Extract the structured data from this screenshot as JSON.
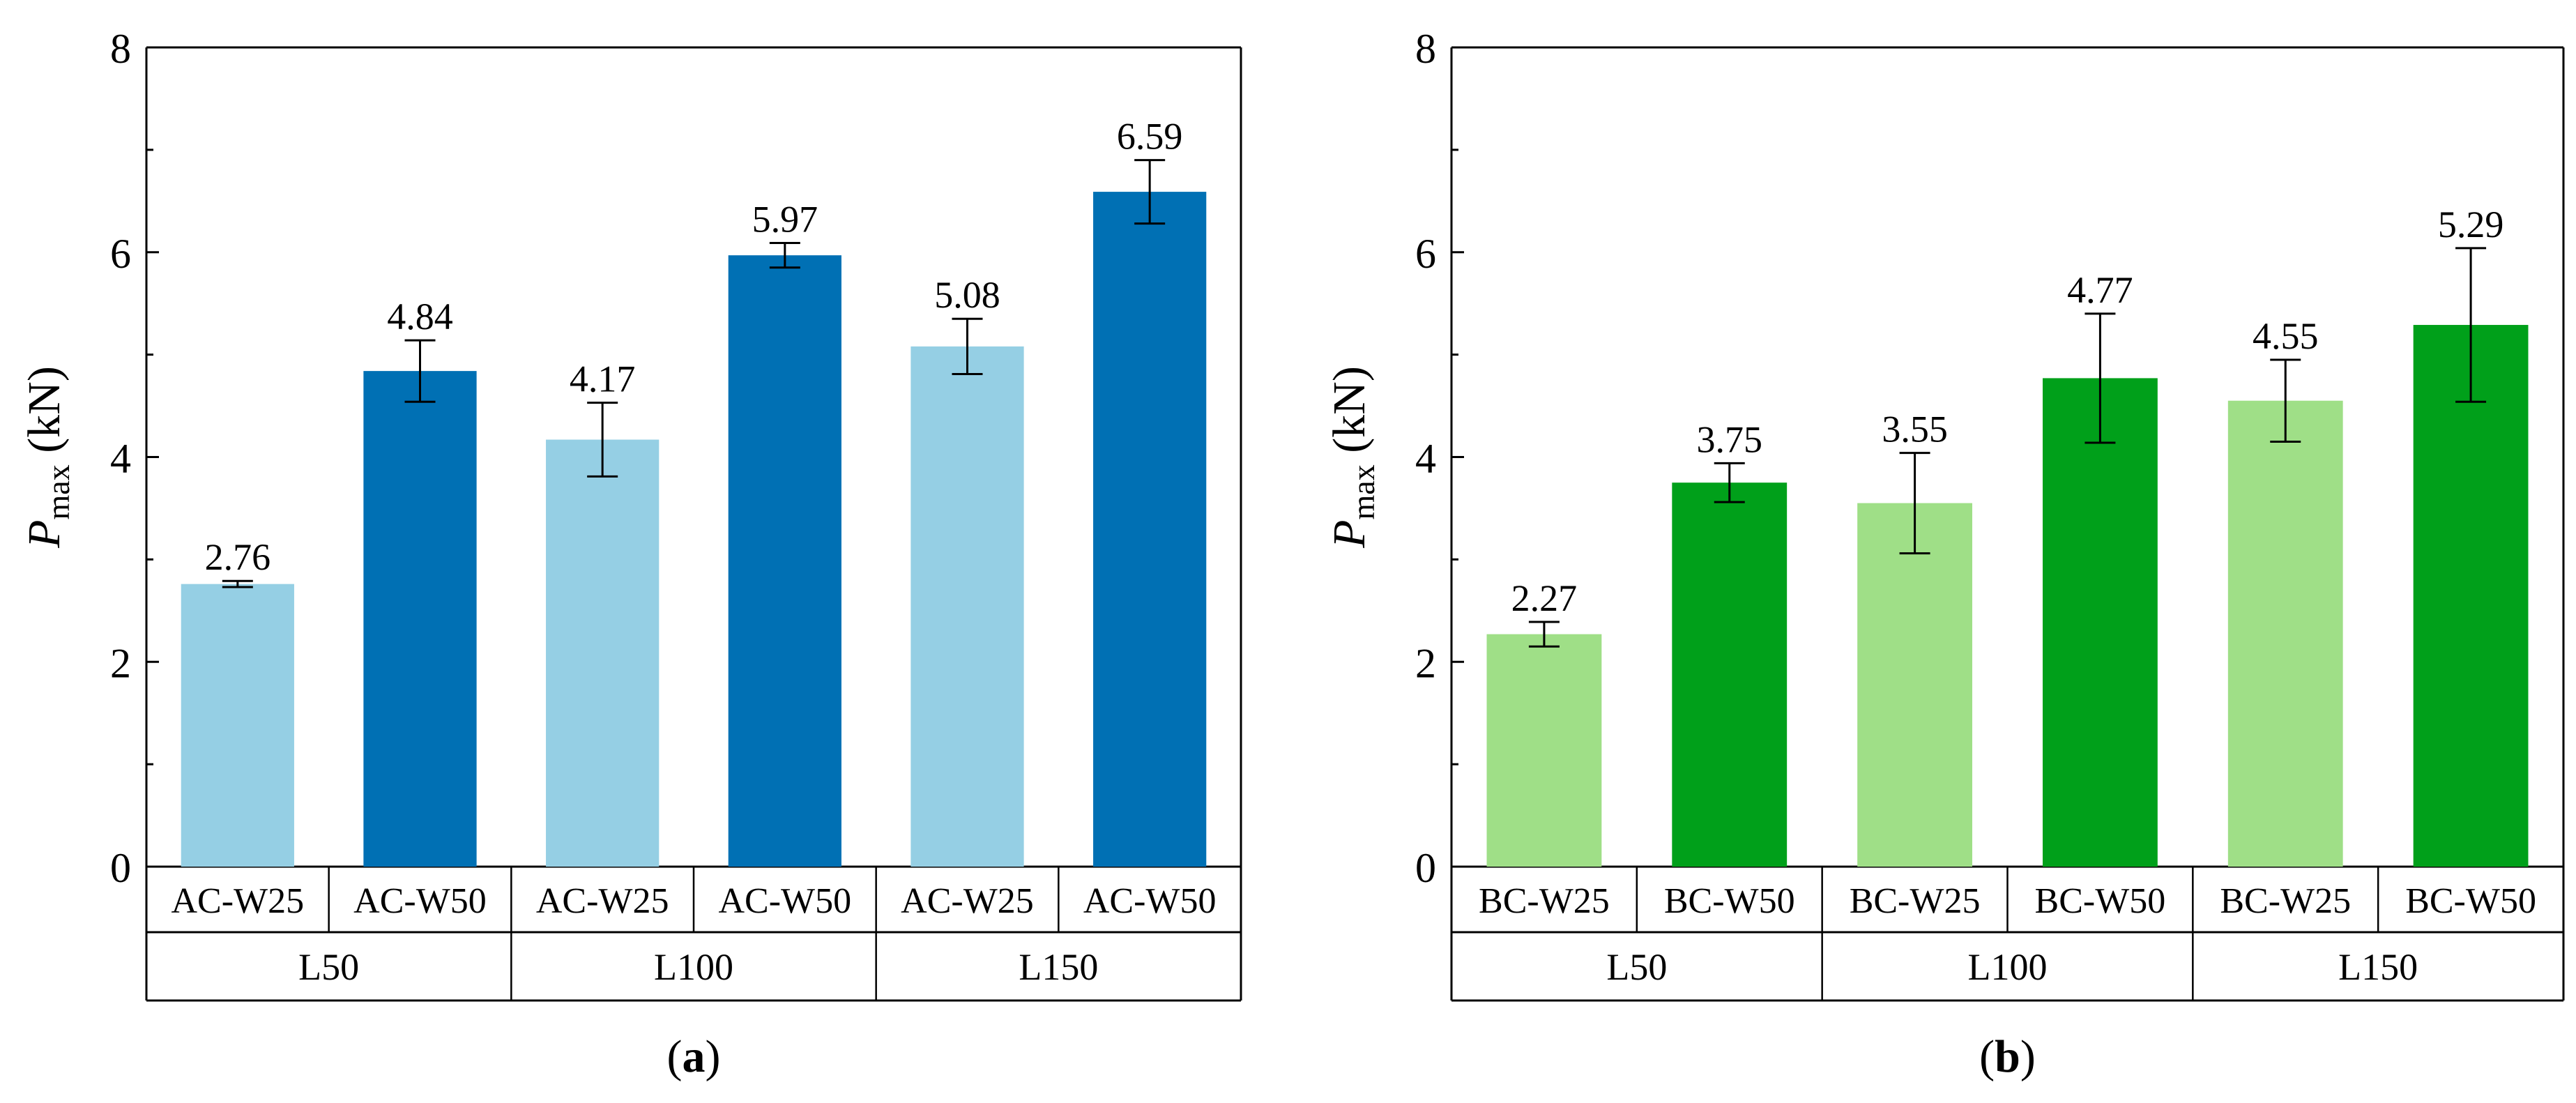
{
  "chart_data": [
    {
      "type": "bar",
      "panel_label": "a",
      "ylabel_symbol": "P",
      "ylabel_subscript": "max",
      "ylabel_unit": " (kN)",
      "ylim": [
        0,
        8
      ],
      "yticks": [
        "0",
        "2",
        "4",
        "6",
        "8"
      ],
      "categories": [
        "AC-W25",
        "AC-W50",
        "AC-W25",
        "AC-W50",
        "AC-W25",
        "AC-W50"
      ],
      "groups": [
        "L50",
        "L100",
        "L150"
      ],
      "values": [
        2.76,
        4.84,
        4.17,
        5.97,
        5.08,
        6.59
      ],
      "value_labels": [
        "2.76",
        "4.84",
        "4.17",
        "5.97",
        "5.08",
        "6.59"
      ],
      "errors": [
        0.03,
        0.3,
        0.36,
        0.12,
        0.27,
        0.31
      ],
      "colors": [
        "#95cfe4",
        "#0070b4",
        "#95cfe4",
        "#0070b4",
        "#95cfe4",
        "#0070b4"
      ]
    },
    {
      "type": "bar",
      "panel_label": "b",
      "ylabel_symbol": "P",
      "ylabel_subscript": "max",
      "ylabel_unit": " (kN)",
      "ylim": [
        0,
        8
      ],
      "yticks": [
        "0",
        "2",
        "4",
        "6",
        "8"
      ],
      "categories": [
        "BC-W25",
        "BC-W50",
        "BC-W25",
        "BC-W50",
        "BC-W25",
        "BC-W50"
      ],
      "groups": [
        "L50",
        "L100",
        "L150"
      ],
      "values": [
        2.27,
        3.75,
        3.55,
        4.77,
        4.55,
        5.29
      ],
      "value_labels": [
        "2.27",
        "3.75",
        "3.55",
        "4.77",
        "4.55",
        "5.29"
      ],
      "errors": [
        0.12,
        0.19,
        0.49,
        0.63,
        0.4,
        0.75
      ],
      "colors": [
        "#9fdf87",
        "#00a01a",
        "#9fdf87",
        "#00a01a",
        "#9fdf87",
        "#00a01a"
      ]
    }
  ]
}
